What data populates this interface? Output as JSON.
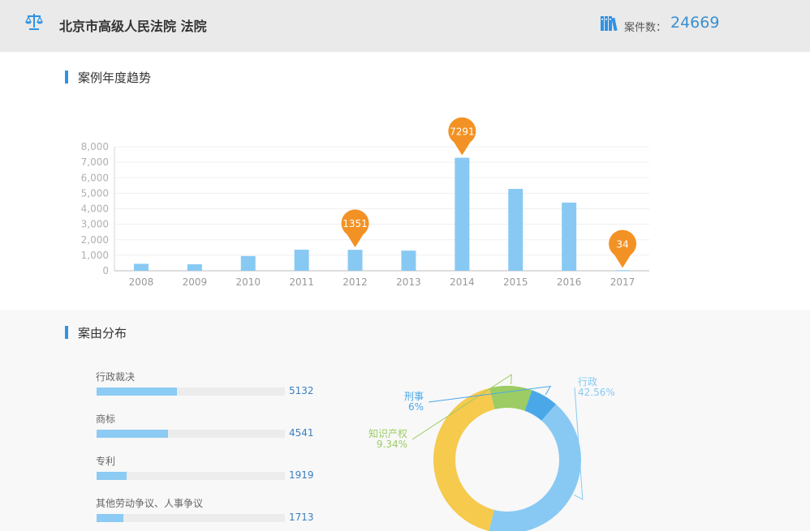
{
  "header": {
    "court_name": "北京市高级人民法院 法院",
    "case_count_label": "案件数：",
    "case_count_value": "24669"
  },
  "sections": {
    "trend_title": "案例年度趋势",
    "distribution_title": "案由分布"
  },
  "colors": {
    "accent": "#2e93e6",
    "bar": "#88c9f3",
    "marker": "#f39224",
    "header_bg": "#eaeaea"
  },
  "chart_data": [
    {
      "type": "bar",
      "categories": [
        "2008",
        "2009",
        "2010",
        "2011",
        "2012",
        "2013",
        "2014",
        "2015",
        "2016",
        "2017"
      ],
      "values": [
        450,
        420,
        950,
        1360,
        1351,
        1300,
        7291,
        5280,
        4400,
        34
      ],
      "y_ticks": [
        "0",
        "1,000",
        "2,000",
        "3,000",
        "4,000",
        "5,000",
        "6,000",
        "7,000",
        "8,000"
      ],
      "ylim": [
        0,
        8000
      ],
      "grid": true,
      "markers": [
        {
          "category": "2012",
          "label": "1351"
        },
        {
          "category": "2014",
          "label": "7291"
        },
        {
          "category": "2017",
          "label": "34"
        }
      ]
    },
    {
      "type": "pie",
      "donut": true,
      "slices": [
        {
          "name": "行政",
          "value": 42.56,
          "label": "42.56%",
          "color": "#88c9f3"
        },
        {
          "name": "",
          "value": 42.1,
          "label": "",
          "color": "#f5ca4d"
        },
        {
          "name": "知识产权",
          "value": 9.34,
          "label": "9.34%",
          "color": "#9ccc63"
        },
        {
          "name": "刑事",
          "value": 6,
          "label": "6%",
          "color": "#4aa8e8"
        }
      ]
    }
  ],
  "distribution": {
    "max": 12000,
    "items": [
      {
        "label": "行政裁决",
        "value": "5132"
      },
      {
        "label": "商标",
        "value": "4541"
      },
      {
        "label": "专利",
        "value": "1919"
      },
      {
        "label": "其他劳动争议、人事争议",
        "value": "1713"
      }
    ]
  }
}
